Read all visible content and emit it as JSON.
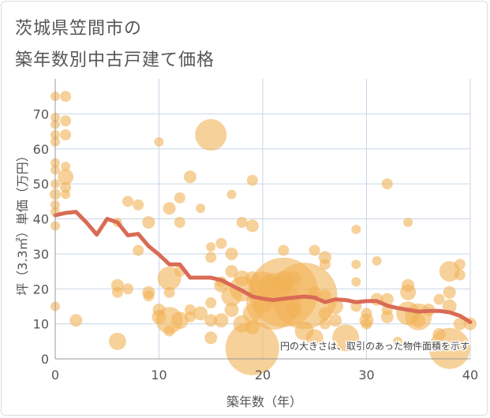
{
  "title_lines": [
    "茨城県笠間市の",
    "築年数別中古戸建て価格"
  ],
  "chart_data": {
    "type": "scatter",
    "xlabel": "築年数（年）",
    "ylabel": "坪（3.3㎡）単価（万円）",
    "xlim": [
      0,
      40
    ],
    "ylim": [
      0,
      80
    ],
    "xticks": [
      0,
      10,
      20,
      30,
      40
    ],
    "yticks": [
      0,
      10,
      20,
      30,
      40,
      50,
      60,
      70
    ],
    "grid": true,
    "annotation": "円の大きさは、取引のあった物件面積を示す",
    "colors": {
      "bubble": "#f2b257",
      "line": "#d96b55",
      "grid": "#c9d6e8",
      "text": "#555555"
    },
    "bubbles": [
      {
        "x": 0,
        "y": 75,
        "s": 6
      },
      {
        "x": 1,
        "y": 75,
        "s": 7
      },
      {
        "x": 0,
        "y": 69,
        "s": 6
      },
      {
        "x": 0,
        "y": 67,
        "s": 6
      },
      {
        "x": 1,
        "y": 68,
        "s": 7
      },
      {
        "x": 0,
        "y": 64,
        "s": 6
      },
      {
        "x": 1,
        "y": 64,
        "s": 7
      },
      {
        "x": 0,
        "y": 62,
        "s": 6
      },
      {
        "x": 0,
        "y": 56,
        "s": 6
      },
      {
        "x": 1,
        "y": 55,
        "s": 6
      },
      {
        "x": 0,
        "y": 54,
        "s": 6
      },
      {
        "x": 1,
        "y": 52,
        "s": 10
      },
      {
        "x": 0,
        "y": 50,
        "s": 6
      },
      {
        "x": 1,
        "y": 49,
        "s": 7
      },
      {
        "x": 0,
        "y": 47,
        "s": 7
      },
      {
        "x": 1,
        "y": 47,
        "s": 6
      },
      {
        "x": 0,
        "y": 44,
        "s": 6
      },
      {
        "x": 0,
        "y": 42,
        "s": 6
      },
      {
        "x": 0,
        "y": 38,
        "s": 6
      },
      {
        "x": 0,
        "y": 15,
        "s": 6
      },
      {
        "x": 2,
        "y": 11,
        "s": 8
      },
      {
        "x": 6,
        "y": 39,
        "s": 6
      },
      {
        "x": 6,
        "y": 21,
        "s": 8
      },
      {
        "x": 6,
        "y": 19,
        "s": 7
      },
      {
        "x": 7,
        "y": 45,
        "s": 7
      },
      {
        "x": 7,
        "y": 20,
        "s": 7
      },
      {
        "x": 8,
        "y": 44,
        "s": 7
      },
      {
        "x": 8,
        "y": 31,
        "s": 7
      },
      {
        "x": 6,
        "y": 5,
        "s": 11
      },
      {
        "x": 9,
        "y": 39,
        "s": 8
      },
      {
        "x": 9,
        "y": 19,
        "s": 8
      },
      {
        "x": 9,
        "y": 18,
        "s": 7
      },
      {
        "x": 10,
        "y": 62,
        "s": 6
      },
      {
        "x": 10,
        "y": 14,
        "s": 8
      },
      {
        "x": 10,
        "y": 12,
        "s": 9
      },
      {
        "x": 11,
        "y": 43,
        "s": 8
      },
      {
        "x": 11,
        "y": 23,
        "s": 15
      },
      {
        "x": 11,
        "y": 19,
        "s": 7
      },
      {
        "x": 11,
        "y": 11,
        "s": 17
      },
      {
        "x": 11,
        "y": 8,
        "s": 7
      },
      {
        "x": 12,
        "y": 46,
        "s": 7
      },
      {
        "x": 12,
        "y": 39,
        "s": 7
      },
      {
        "x": 12,
        "y": 25,
        "s": 7
      },
      {
        "x": 12,
        "y": 11,
        "s": 11
      },
      {
        "x": 13,
        "y": 52,
        "s": 8
      },
      {
        "x": 13,
        "y": 14,
        "s": 7
      },
      {
        "x": 13,
        "y": 12,
        "s": 7
      },
      {
        "x": 14,
        "y": 43,
        "s": 6
      },
      {
        "x": 14,
        "y": 13,
        "s": 9
      },
      {
        "x": 15,
        "y": 64,
        "s": 20
      },
      {
        "x": 15,
        "y": 32,
        "s": 6
      },
      {
        "x": 15,
        "y": 29,
        "s": 7
      },
      {
        "x": 15,
        "y": 16,
        "s": 7
      },
      {
        "x": 15,
        "y": 11,
        "s": 8
      },
      {
        "x": 15,
        "y": 6,
        "s": 8
      },
      {
        "x": 16,
        "y": 33,
        "s": 7
      },
      {
        "x": 16,
        "y": 22,
        "s": 7
      },
      {
        "x": 16,
        "y": 21,
        "s": 9
      },
      {
        "x": 16,
        "y": 11,
        "s": 9
      },
      {
        "x": 17,
        "y": 47,
        "s": 6
      },
      {
        "x": 17,
        "y": 30,
        "s": 8
      },
      {
        "x": 17,
        "y": 25,
        "s": 8
      },
      {
        "x": 17,
        "y": 18,
        "s": 13
      },
      {
        "x": 17,
        "y": 14,
        "s": 9
      },
      {
        "x": 18,
        "y": 39,
        "s": 7
      },
      {
        "x": 18,
        "y": 23,
        "s": 10
      },
      {
        "x": 18,
        "y": 20,
        "s": 16
      },
      {
        "x": 18,
        "y": 10,
        "s": 11
      },
      {
        "x": 19,
        "y": 51,
        "s": 7
      },
      {
        "x": 19,
        "y": 38,
        "s": 8
      },
      {
        "x": 19,
        "y": 23,
        "s": 9
      },
      {
        "x": 19,
        "y": 13,
        "s": 12
      },
      {
        "x": 19,
        "y": 9,
        "s": 9
      },
      {
        "x": 19,
        "y": 3,
        "s": 34
      },
      {
        "x": 20,
        "y": 21,
        "s": 18
      },
      {
        "x": 20,
        "y": 16,
        "s": 12
      },
      {
        "x": 21,
        "y": 16,
        "s": 34
      },
      {
        "x": 21,
        "y": 20,
        "s": 20
      },
      {
        "x": 22,
        "y": 31,
        "s": 7
      },
      {
        "x": 22,
        "y": 22,
        "s": 14
      },
      {
        "x": 22,
        "y": 19,
        "s": 44
      },
      {
        "x": 23,
        "y": 23,
        "s": 9
      },
      {
        "x": 23,
        "y": 14,
        "s": 10
      },
      {
        "x": 24,
        "y": 18,
        "s": 42
      },
      {
        "x": 24,
        "y": 8,
        "s": 12
      },
      {
        "x": 25,
        "y": 31,
        "s": 7
      },
      {
        "x": 25,
        "y": 19,
        "s": 8
      },
      {
        "x": 25,
        "y": 6,
        "s": 11
      },
      {
        "x": 26,
        "y": 29,
        "s": 8
      },
      {
        "x": 26,
        "y": 27,
        "s": 7
      },
      {
        "x": 26,
        "y": 18,
        "s": 8
      },
      {
        "x": 26,
        "y": 13,
        "s": 8
      },
      {
        "x": 26,
        "y": 10,
        "s": 7
      },
      {
        "x": 27,
        "y": 15,
        "s": 10
      },
      {
        "x": 27,
        "y": 11,
        "s": 8
      },
      {
        "x": 28,
        "y": 6,
        "s": 17
      },
      {
        "x": 29,
        "y": 37,
        "s": 6
      },
      {
        "x": 29,
        "y": 27,
        "s": 6
      },
      {
        "x": 29,
        "y": 22,
        "s": 6
      },
      {
        "x": 29,
        "y": 15,
        "s": 7
      },
      {
        "x": 30,
        "y": 13,
        "s": 7
      },
      {
        "x": 30,
        "y": 11,
        "s": 9
      },
      {
        "x": 30,
        "y": 10,
        "s": 7
      },
      {
        "x": 31,
        "y": 28,
        "s": 6
      },
      {
        "x": 31,
        "y": 17,
        "s": 8
      },
      {
        "x": 32,
        "y": 50,
        "s": 7
      },
      {
        "x": 32,
        "y": 17,
        "s": 8
      },
      {
        "x": 32,
        "y": 14,
        "s": 7
      },
      {
        "x": 32,
        "y": 12,
        "s": 8
      },
      {
        "x": 33,
        "y": 5,
        "s": 6
      },
      {
        "x": 34,
        "y": 39,
        "s": 6
      },
      {
        "x": 34,
        "y": 21,
        "s": 8
      },
      {
        "x": 34,
        "y": 19,
        "s": 10
      },
      {
        "x": 34,
        "y": 13,
        "s": 15
      },
      {
        "x": 35,
        "y": 12,
        "s": 17
      },
      {
        "x": 35,
        "y": 11,
        "s": 9
      },
      {
        "x": 36,
        "y": 14,
        "s": 8
      },
      {
        "x": 37,
        "y": 17,
        "s": 7
      },
      {
        "x": 37,
        "y": 7,
        "s": 8
      },
      {
        "x": 38,
        "y": 25,
        "s": 13
      },
      {
        "x": 38,
        "y": 19,
        "s": 8
      },
      {
        "x": 38,
        "y": 15,
        "s": 9
      },
      {
        "x": 38,
        "y": 3,
        "s": 26
      },
      {
        "x": 39,
        "y": 27,
        "s": 7
      },
      {
        "x": 39,
        "y": 24,
        "s": 7
      },
      {
        "x": 39,
        "y": 10,
        "s": 8
      },
      {
        "x": 40,
        "y": 10,
        "s": 8
      }
    ],
    "series": [
      {
        "type": "line",
        "x": [
          0,
          1,
          2,
          3,
          4,
          5,
          6,
          7,
          8,
          9,
          10,
          11,
          12,
          13,
          14,
          15,
          16,
          17,
          18,
          19,
          20,
          21,
          22,
          23,
          24,
          25,
          26,
          27,
          28,
          29,
          30,
          31,
          32,
          33,
          34,
          35,
          36,
          37,
          38,
          39,
          40
        ],
        "values": [
          41,
          41.7,
          42,
          39,
          35.5,
          40,
          39,
          35.3,
          35.7,
          32.2,
          29.8,
          27,
          27,
          23.2,
          23.2,
          23.2,
          22.5,
          21,
          19.5,
          17.8,
          17.2,
          16.8,
          17.2,
          17.5,
          17.8,
          17.5,
          16.2,
          17,
          16.8,
          16.2,
          16.5,
          16.5,
          15.2,
          14.5,
          14,
          13.5,
          13.7,
          13.7,
          13.3,
          12.3,
          10.5
        ]
      }
    ]
  }
}
